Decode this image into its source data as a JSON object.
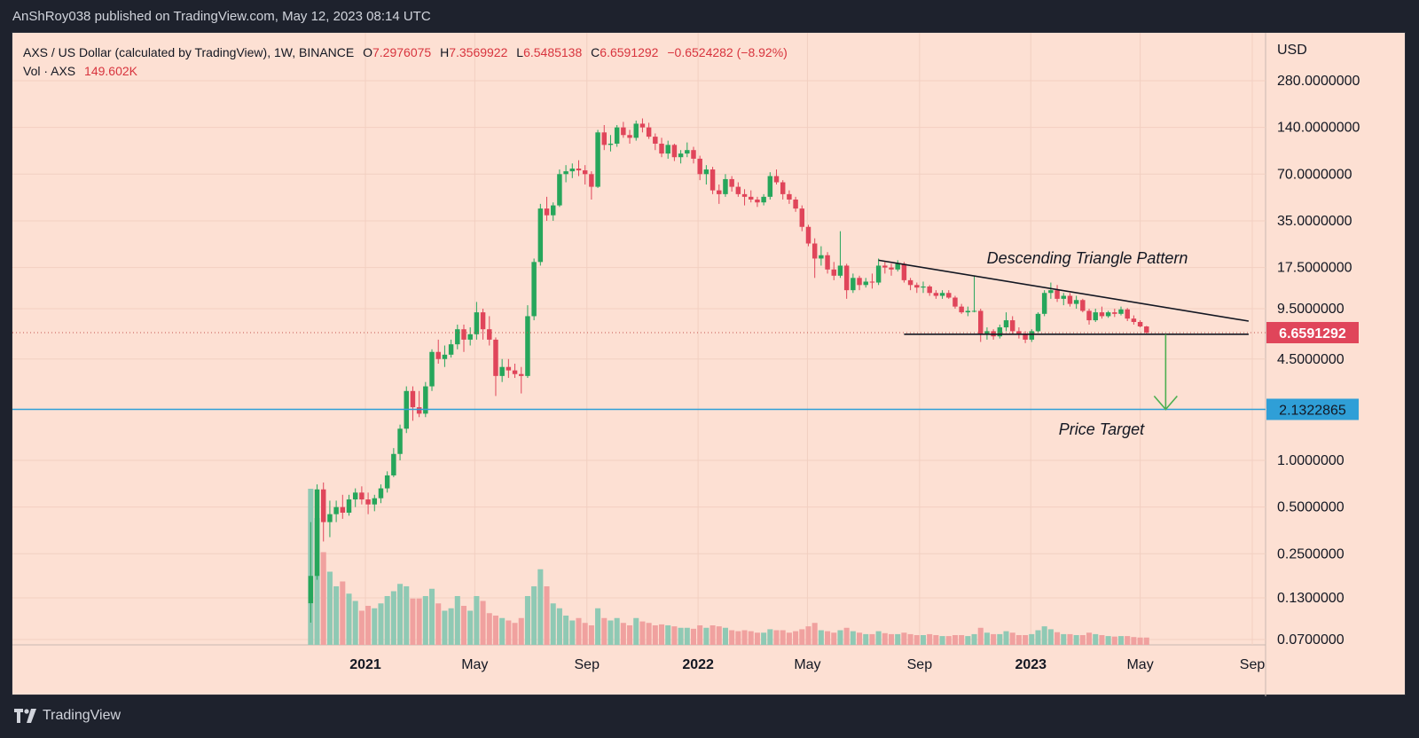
{
  "header": {
    "published": "AnShRoy038 published on TradingView.com, May 12, 2023 08:14 UTC"
  },
  "legend": {
    "symbol": "AXS / US Dollar (calculated by TradingView), 1W, BINANCE",
    "o_label": "O",
    "o": "7.2976075",
    "h_label": "H",
    "h": "7.3569922",
    "l_label": "L",
    "l": "6.5485138",
    "c_label": "C",
    "c": "6.6591292",
    "change": "−0.6524282 (−8.92%)",
    "vol_label": "Vol · AXS",
    "vol": "149.602K"
  },
  "footer": {
    "brand": "TradingView"
  },
  "colors": {
    "background": "#fde0d3",
    "up": "#26a65b",
    "down": "#e0455a",
    "vol_up": "#8fc9b4",
    "vol_down": "#f0a19f",
    "target_line": "#2f9fd7",
    "arrow": "#4caf50"
  },
  "chart_data": {
    "type": "candlestick",
    "symbol": "AXS/USD",
    "interval": "1W",
    "scale": "log",
    "currency": "USD",
    "price_axis_labels": [
      "280.0000000",
      "140.0000000",
      "70.0000000",
      "35.0000000",
      "17.5000000",
      "9.5000000",
      "4.5000000",
      "1.0000000",
      "0.5000000",
      "0.2500000",
      "0.1300000",
      "0.0700000"
    ],
    "price_axis_values": [
      280,
      140,
      70,
      35,
      17.5,
      9.5,
      4.5,
      1.0,
      0.5,
      0.25,
      0.13,
      0.07
    ],
    "time_axis_labels": [
      "2021",
      "May",
      "Sep",
      "2022",
      "May",
      "Sep",
      "2023",
      "May",
      "Sep"
    ],
    "time_axis_dates": [
      "2021-01-01",
      "2021-05-01",
      "2021-09-01",
      "2022-01-01",
      "2022-05-01",
      "2022-09-01",
      "2023-01-01",
      "2023-05-01",
      "2023-09-01"
    ],
    "last_price": {
      "label": "6.6591292",
      "value": 6.6591292
    },
    "price_target": {
      "label": "2.1322865",
      "value": 2.1322865,
      "text": "Price Target"
    },
    "pattern": {
      "name": "Descending Triangle Pattern",
      "resistance": [
        {
          "date": "2022-07-18",
          "price": 19.5
        },
        {
          "date": "2023-08-28",
          "price": 7.9
        }
      ],
      "support": [
        {
          "date": "2022-08-15",
          "price": 6.5
        },
        {
          "date": "2023-08-28",
          "price": 6.5
        }
      ]
    },
    "candles": [
      [
        "2020-11-02",
        0.12,
        0.4,
        0.09,
        0.18,
        320
      ],
      [
        "2020-11-09",
        0.18,
        0.7,
        0.17,
        0.65,
        260
      ],
      [
        "2020-11-16",
        0.65,
        0.72,
        0.3,
        0.4,
        190
      ],
      [
        "2020-11-23",
        0.4,
        0.55,
        0.32,
        0.45,
        150
      ],
      [
        "2020-11-30",
        0.45,
        0.55,
        0.4,
        0.5,
        120
      ],
      [
        "2020-12-07",
        0.5,
        0.6,
        0.42,
        0.46,
        130
      ],
      [
        "2020-12-14",
        0.46,
        0.6,
        0.44,
        0.56,
        105
      ],
      [
        "2020-12-21",
        0.56,
        0.66,
        0.5,
        0.62,
        90
      ],
      [
        "2020-12-28",
        0.62,
        0.68,
        0.52,
        0.56,
        70
      ],
      [
        "2021-01-04",
        0.56,
        0.62,
        0.45,
        0.52,
        80
      ],
      [
        "2021-01-11",
        0.52,
        0.6,
        0.47,
        0.57,
        75
      ],
      [
        "2021-01-18",
        0.57,
        0.7,
        0.53,
        0.66,
        85
      ],
      [
        "2021-01-25",
        0.66,
        0.85,
        0.62,
        0.8,
        100
      ],
      [
        "2021-02-01",
        0.8,
        1.2,
        0.78,
        1.1,
        110
      ],
      [
        "2021-02-08",
        1.1,
        1.7,
        1.0,
        1.6,
        125
      ],
      [
        "2021-02-15",
        1.6,
        3.0,
        1.5,
        2.8,
        120
      ],
      [
        "2021-02-22",
        2.8,
        3.0,
        1.8,
        2.2,
        95
      ],
      [
        "2021-03-01",
        2.2,
        2.8,
        1.9,
        2.0,
        95
      ],
      [
        "2021-03-08",
        2.0,
        3.2,
        1.9,
        3.0,
        100
      ],
      [
        "2021-03-15",
        3.0,
        5.2,
        2.8,
        5.0,
        115
      ],
      [
        "2021-03-22",
        5.0,
        6.0,
        4.2,
        4.5,
        85
      ],
      [
        "2021-03-29",
        4.5,
        5.5,
        4.0,
        4.8,
        70
      ],
      [
        "2021-04-05",
        4.8,
        6.0,
        4.6,
        5.6,
        75
      ],
      [
        "2021-04-12",
        5.6,
        7.5,
        5.2,
        7.0,
        100
      ],
      [
        "2021-04-19",
        7.0,
        7.5,
        5.0,
        6.0,
        80
      ],
      [
        "2021-04-26",
        6.0,
        7.2,
        5.5,
        6.5,
        70
      ],
      [
        "2021-05-03",
        6.5,
        10.5,
        6.0,
        9.0,
        100
      ],
      [
        "2021-05-10",
        9.0,
        9.5,
        6.0,
        7.0,
        90
      ],
      [
        "2021-05-17",
        7.0,
        8.5,
        5.5,
        6.0,
        65
      ],
      [
        "2021-05-24",
        6.0,
        6.2,
        2.6,
        3.5,
        60
      ],
      [
        "2021-05-31",
        3.5,
        4.5,
        3.2,
        4.0,
        55
      ],
      [
        "2021-06-07",
        4.0,
        4.5,
        3.4,
        3.8,
        50
      ],
      [
        "2021-06-14",
        3.8,
        4.2,
        3.4,
        3.6,
        45
      ],
      [
        "2021-06-21",
        3.6,
        4.0,
        2.7,
        3.5,
        55
      ],
      [
        "2021-06-28",
        3.5,
        10.0,
        3.4,
        8.5,
        100
      ],
      [
        "2021-07-05",
        8.5,
        20.0,
        8.0,
        19.0,
        120
      ],
      [
        "2021-07-12",
        19.0,
        45.0,
        18.0,
        42.0,
        155
      ],
      [
        "2021-07-19",
        42.0,
        50.0,
        35.0,
        38.0,
        120
      ],
      [
        "2021-07-26",
        38.0,
        46.0,
        35.0,
        44.0,
        85
      ],
      [
        "2021-08-02",
        44.0,
        75.0,
        43.0,
        70.0,
        75
      ],
      [
        "2021-08-09",
        70.0,
        80.0,
        62.0,
        73.0,
        60
      ],
      [
        "2021-08-16",
        73.0,
        82.0,
        66.0,
        76.0,
        50
      ],
      [
        "2021-08-23",
        76.0,
        86.0,
        68.0,
        74.0,
        55
      ],
      [
        "2021-08-30",
        74.0,
        80.0,
        60.0,
        70.0,
        45
      ],
      [
        "2021-09-06",
        70.0,
        73.0,
        48.0,
        58.0,
        40
      ],
      [
        "2021-09-13",
        58.0,
        135.0,
        57.0,
        130.0,
        75
      ],
      [
        "2021-09-20",
        130.0,
        145.0,
        100.0,
        108.0,
        55
      ],
      [
        "2021-09-27",
        108.0,
        125.0,
        98.0,
        110.0,
        50
      ],
      [
        "2021-10-04",
        110.0,
        145.0,
        105.0,
        140.0,
        55
      ],
      [
        "2021-10-11",
        140.0,
        152.0,
        120.0,
        125.0,
        45
      ],
      [
        "2021-10-18",
        125.0,
        135.0,
        110.0,
        120.0,
        40
      ],
      [
        "2021-10-25",
        120.0,
        155.0,
        115.0,
        148.0,
        55
      ],
      [
        "2021-11-01",
        148.0,
        160.0,
        130.0,
        140.0,
        48
      ],
      [
        "2021-11-08",
        140.0,
        150.0,
        118.0,
        122.0,
        45
      ],
      [
        "2021-11-15",
        122.0,
        128.0,
        100.0,
        110.0,
        40
      ],
      [
        "2021-11-22",
        110.0,
        120.0,
        90.0,
        95.0,
        42
      ],
      [
        "2021-11-29",
        95.0,
        115.0,
        88.0,
        108.0,
        40
      ],
      [
        "2021-12-06",
        108.0,
        110.0,
        85.0,
        90.0,
        38
      ],
      [
        "2021-12-13",
        90.0,
        100.0,
        82.0,
        95.0,
        35
      ],
      [
        "2021-12-20",
        95.0,
        112.0,
        90.0,
        100.0,
        35
      ],
      [
        "2021-12-27",
        100.0,
        105.0,
        82.0,
        88.0,
        33
      ],
      [
        "2022-01-03",
        88.0,
        92.0,
        64.0,
        70.0,
        40
      ],
      [
        "2022-01-10",
        70.0,
        80.0,
        60.0,
        75.0,
        35
      ],
      [
        "2022-01-17",
        75.0,
        78.0,
        52.0,
        55.0,
        40
      ],
      [
        "2022-01-24",
        55.0,
        60.0,
        45.0,
        52.0,
        38
      ],
      [
        "2022-01-31",
        52.0,
        70.0,
        50.0,
        65.0,
        35
      ],
      [
        "2022-02-07",
        65.0,
        68.0,
        54.0,
        58.0,
        30
      ],
      [
        "2022-02-14",
        58.0,
        62.0,
        50.0,
        52.0,
        28
      ],
      [
        "2022-02-21",
        52.0,
        56.0,
        44.0,
        50.0,
        30
      ],
      [
        "2022-02-28",
        50.0,
        55.0,
        46.0,
        48.0,
        28
      ],
      [
        "2022-03-07",
        48.0,
        50.0,
        43.0,
        46.0,
        25
      ],
      [
        "2022-03-14",
        46.0,
        52.0,
        44.0,
        50.0,
        25
      ],
      [
        "2022-03-21",
        50.0,
        72.0,
        48.0,
        68.0,
        32
      ],
      [
        "2022-03-28",
        68.0,
        75.0,
        60.0,
        62.0,
        30
      ],
      [
        "2022-04-04",
        62.0,
        64.0,
        48.0,
        52.0,
        30
      ],
      [
        "2022-04-11",
        52.0,
        55.0,
        45.0,
        48.0,
        25
      ],
      [
        "2022-04-18",
        48.0,
        50.0,
        40.0,
        42.0,
        28
      ],
      [
        "2022-04-25",
        42.0,
        44.0,
        30.0,
        32.0,
        32
      ],
      [
        "2022-05-02",
        32.0,
        33.0,
        24.0,
        25.0,
        38
      ],
      [
        "2022-05-09",
        25.0,
        27.0,
        15.0,
        20.0,
        45
      ],
      [
        "2022-05-16",
        20.0,
        24.0,
        18.0,
        21.0,
        30
      ],
      [
        "2022-05-23",
        21.0,
        22.0,
        16.0,
        17.0,
        28
      ],
      [
        "2022-05-30",
        17.0,
        19.0,
        14.5,
        15.5,
        25
      ],
      [
        "2022-06-06",
        15.5,
        30.0,
        15.0,
        18.0,
        30
      ],
      [
        "2022-06-13",
        18.0,
        18.5,
        11.0,
        12.5,
        35
      ],
      [
        "2022-06-20",
        12.5,
        16.0,
        12.0,
        15.0,
        28
      ],
      [
        "2022-06-27",
        15.0,
        15.5,
        12.5,
        13.5,
        25
      ],
      [
        "2022-07-04",
        13.5,
        15.0,
        13.0,
        14.2,
        22
      ],
      [
        "2022-07-11",
        14.2,
        16.0,
        12.8,
        14.0,
        22
      ],
      [
        "2022-07-18",
        14.0,
        20.0,
        13.5,
        18.0,
        28
      ],
      [
        "2022-07-25",
        18.0,
        19.0,
        16.0,
        17.5,
        24
      ],
      [
        "2022-08-01",
        17.5,
        18.5,
        15.5,
        17.0,
        22
      ],
      [
        "2022-08-08",
        17.0,
        19.5,
        16.5,
        18.5,
        22
      ],
      [
        "2022-08-15",
        18.5,
        19.0,
        14.0,
        14.5,
        25
      ],
      [
        "2022-08-22",
        14.5,
        15.0,
        12.5,
        13.5,
        22
      ],
      [
        "2022-08-29",
        13.5,
        14.0,
        12.0,
        13.0,
        20
      ],
      [
        "2022-09-05",
        13.0,
        14.2,
        12.0,
        13.2,
        20
      ],
      [
        "2022-09-12",
        13.2,
        13.5,
        11.5,
        12.0,
        22
      ],
      [
        "2022-09-19",
        12.0,
        12.5,
        11.0,
        11.5,
        20
      ],
      [
        "2022-09-26",
        11.5,
        12.5,
        11.0,
        12.0,
        18
      ],
      [
        "2022-10-03",
        12.0,
        12.5,
        11.0,
        11.2,
        18
      ],
      [
        "2022-10-10",
        11.2,
        11.5,
        9.5,
        9.8,
        20
      ],
      [
        "2022-10-17",
        9.8,
        10.2,
        8.8,
        9.0,
        20
      ],
      [
        "2022-10-24",
        9.0,
        9.8,
        8.5,
        9.2,
        18
      ],
      [
        "2022-10-31",
        9.2,
        15.5,
        9.0,
        9.2,
        22
      ],
      [
        "2022-11-07",
        9.2,
        9.5,
        5.8,
        6.5,
        35
      ],
      [
        "2022-11-14",
        6.5,
        7.2,
        6.0,
        6.8,
        25
      ],
      [
        "2022-11-21",
        6.8,
        7.0,
        6.0,
        6.3,
        22
      ],
      [
        "2022-11-28",
        6.3,
        7.5,
        6.1,
        7.2,
        22
      ],
      [
        "2022-12-05",
        7.2,
        9.0,
        6.8,
        8.0,
        28
      ],
      [
        "2022-12-12",
        8.0,
        8.5,
        6.5,
        6.8,
        25
      ],
      [
        "2022-12-19",
        6.8,
        7.2,
        6.1,
        6.5,
        20
      ],
      [
        "2022-12-26",
        6.5,
        6.8,
        5.7,
        6.0,
        20
      ],
      [
        "2023-01-02",
        6.0,
        7.0,
        5.8,
        6.8,
        22
      ],
      [
        "2023-01-09",
        6.8,
        9.0,
        6.7,
        8.8,
        30
      ],
      [
        "2023-01-16",
        8.8,
        12.5,
        8.5,
        12.0,
        38
      ],
      [
        "2023-01-23",
        12.0,
        14.0,
        11.0,
        12.5,
        32
      ],
      [
        "2023-01-30",
        12.5,
        13.5,
        10.5,
        11.0,
        26
      ],
      [
        "2023-02-06",
        11.0,
        12.0,
        10.0,
        11.5,
        22
      ],
      [
        "2023-02-13",
        11.5,
        12.0,
        9.8,
        10.2,
        22
      ],
      [
        "2023-02-20",
        10.2,
        11.5,
        9.5,
        10.8,
        20
      ],
      [
        "2023-02-27",
        10.8,
        11.0,
        9.0,
        9.2,
        20
      ],
      [
        "2023-03-06",
        9.2,
        9.5,
        7.5,
        8.0,
        25
      ],
      [
        "2023-03-13",
        8.0,
        9.5,
        7.8,
        9.0,
        22
      ],
      [
        "2023-03-20",
        9.0,
        9.8,
        8.2,
        8.5,
        20
      ],
      [
        "2023-03-27",
        8.5,
        9.2,
        8.3,
        9.0,
        18
      ],
      [
        "2023-04-03",
        9.0,
        9.5,
        8.4,
        8.8,
        17
      ],
      [
        "2023-04-10",
        8.8,
        9.8,
        8.6,
        9.4,
        18
      ],
      [
        "2023-04-17",
        9.4,
        9.6,
        7.9,
        8.2,
        18
      ],
      [
        "2023-04-24",
        8.2,
        8.6,
        7.5,
        7.8,
        16
      ],
      [
        "2023-05-01",
        7.8,
        8.0,
        7.2,
        7.3,
        15
      ],
      [
        "2023-05-08",
        7.2976075,
        7.3569922,
        6.5485138,
        6.6591292,
        15
      ]
    ]
  }
}
